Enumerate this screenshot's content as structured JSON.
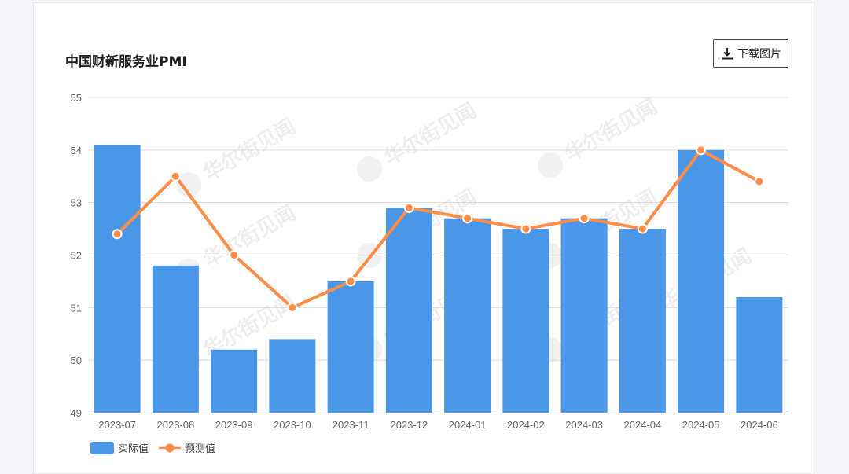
{
  "header": {
    "title": "中国财新服务业PMI",
    "download_label": "下载图片"
  },
  "watermark": "华尔街见闻",
  "colors": {
    "bar": "#4a97e8",
    "line": "#ff8d48",
    "grid": "#dcdcdc",
    "axis": "#666666"
  },
  "chart_data": {
    "type": "bar",
    "title": "中国财新服务业PMI",
    "categories": [
      "2023-07",
      "2023-08",
      "2023-09",
      "2023-10",
      "2023-11",
      "2023-12",
      "2024-01",
      "2024-02",
      "2024-03",
      "2024-04",
      "2024-05",
      "2024-06"
    ],
    "series": [
      {
        "name": "实际值",
        "type": "bar",
        "values": [
          54.1,
          51.8,
          50.2,
          50.4,
          51.5,
          52.9,
          52.7,
          52.5,
          52.7,
          52.5,
          54.0,
          51.2
        ]
      },
      {
        "name": "预测值",
        "type": "line",
        "values": [
          52.4,
          53.5,
          52.0,
          51.0,
          51.5,
          52.9,
          52.7,
          52.5,
          52.7,
          52.5,
          54.0,
          53.4
        ]
      }
    ],
    "ylim": [
      49,
      55
    ],
    "yticks": [
      49,
      50,
      51,
      52,
      53,
      54,
      55
    ],
    "grid": true,
    "legend": "bottom-left"
  }
}
